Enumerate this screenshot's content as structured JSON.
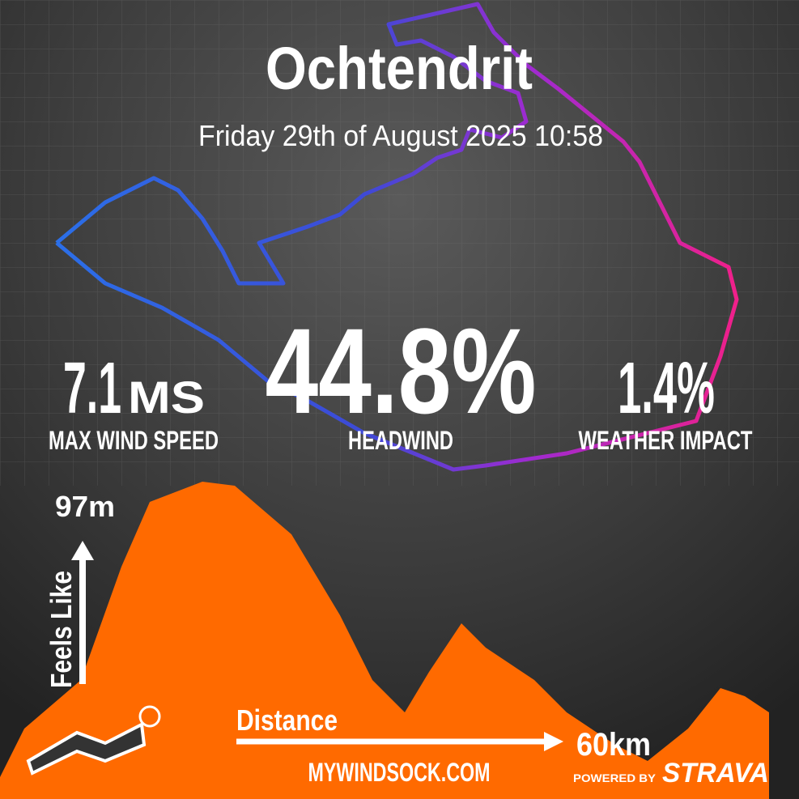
{
  "title": "Ochtendrit",
  "date": "Friday 29th of August 2025 10:58",
  "stats": [
    {
      "value": "7.1",
      "unit": "MS",
      "label": "MAX WIND SPEED"
    },
    {
      "value": "44.8%",
      "label": "HEADWIND"
    },
    {
      "value": "1.4%",
      "label": "WEATHER IMPACT"
    }
  ],
  "profile": {
    "max": "97m",
    "y_label": "Feels Like",
    "x_label": "Distance",
    "distance": "60km"
  },
  "footer": {
    "site": "MYWINDSOCK.COM",
    "powered": "POWERED BY",
    "brand": "STRAVA"
  }
}
